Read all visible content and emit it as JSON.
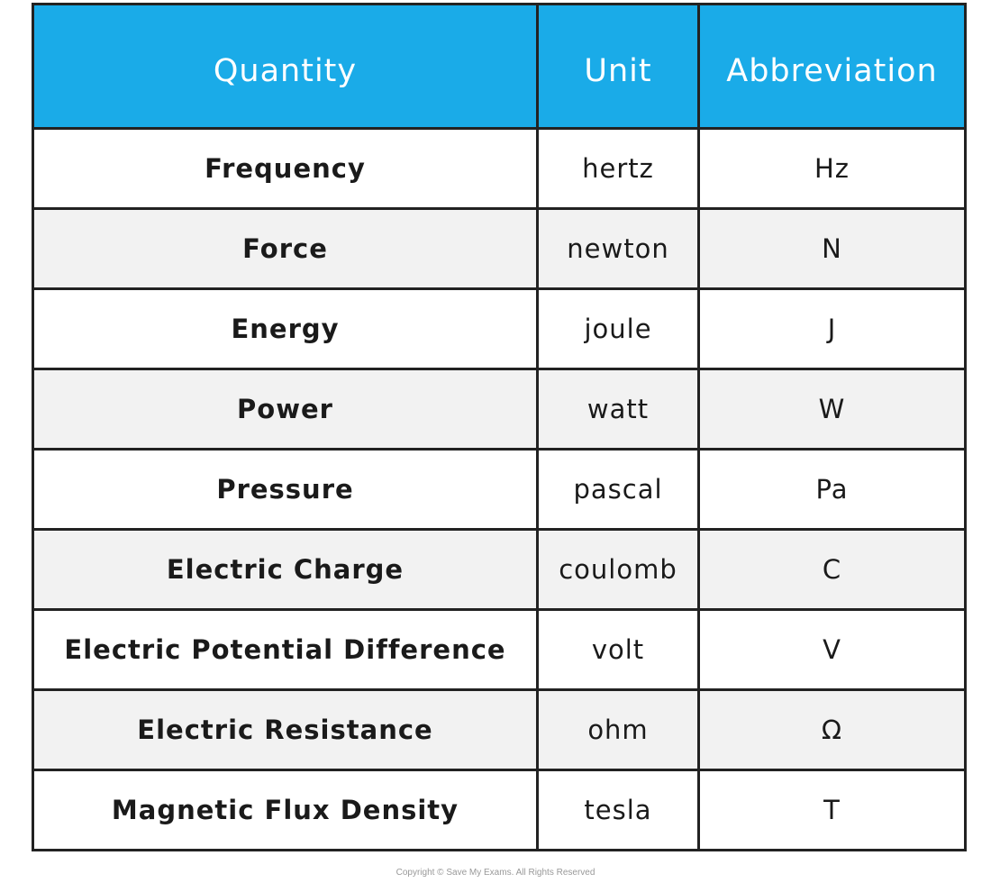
{
  "headers": {
    "quantity": "Quantity",
    "unit": "Unit",
    "abbreviation": "Abbreviation"
  },
  "header_color": "#1aabe8",
  "rows": [
    {
      "quantity": "Frequency",
      "unit": "hertz",
      "abbreviation": "Hz"
    },
    {
      "quantity": "Force",
      "unit": "newton",
      "abbreviation": "N"
    },
    {
      "quantity": "Energy",
      "unit": "joule",
      "abbreviation": "J"
    },
    {
      "quantity": "Power",
      "unit": "watt",
      "abbreviation": "W"
    },
    {
      "quantity": "Pressure",
      "unit": "pascal",
      "abbreviation": "Pa"
    },
    {
      "quantity": "Electric Charge",
      "unit": "coulomb",
      "abbreviation": "C"
    },
    {
      "quantity": "Electric Potential Difference",
      "unit": "volt",
      "abbreviation": "V"
    },
    {
      "quantity": "Electric Resistance",
      "unit": "ohm",
      "abbreviation": "Ω"
    },
    {
      "quantity": "Magnetic Flux Density",
      "unit": "tesla",
      "abbreviation": "T"
    }
  ],
  "copyright": "Copyright © Save My Exams. All Rights Reserved"
}
